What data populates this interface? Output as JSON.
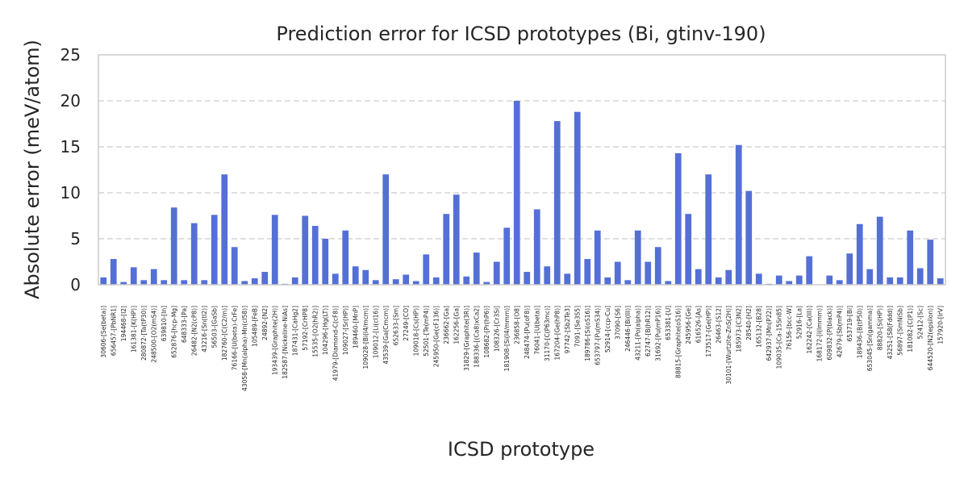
{
  "chart_data": {
    "type": "bar",
    "title": "Prediction error for ICSD prototypes (Bi, gtinv-190)",
    "xlabel": "ICSD prototype",
    "ylabel": "Absolute error (meV/atom)",
    "ylim": [
      0,
      25
    ],
    "yticks": [
      0,
      5,
      10,
      15,
      20,
      25
    ],
    "grid": "y-dashed",
    "bar_color": "#5470d6",
    "categories": [
      "30606-[Se(beta)]",
      "656457-[PbNR1]",
      "194468-[I2]",
      "161381-[K(HP)]",
      "280872-[Ta(tP30)]",
      "248500-[O2(mS4)]",
      "639810-[In]",
      "652876-[hcp-Mg]",
      "648333-[Pa]",
      "26482-[N2(cP8)]",
      "43216-[Sn(tI2)]",
      "56503-[GaSb]",
      "182760-[C(C2/m)]",
      "76166-[U(beta)-CrFe]",
      "43058-[Mn(alpha)-Mn(cI58)]",
      "105489-[FeB]",
      "24892-[N2]",
      "193439-[Graphite(2H)]",
      "182587-[Nickeline-NiAs]",
      "187431-[CaHg2]",
      "57192-[CrHP8]",
      "15535-[O2(hR2)]",
      "104296-[Hg(LT)]",
      "41979-[Diamond-C(cF8)]",
      "109027-[Sr(HP)]",
      "189460-[MnP]",
      "109028-[Bi(I4/mcm)]",
      "109012-[Li(cI16)]",
      "43539-[Ga(Cmcm)]",
      "652633-[Sm]",
      "27249-[CO]",
      "109018-[Cs(HP)]",
      "52501-[Te(mP4)]",
      "245950-[Ge(cF136)]",
      "236662-[Ga]",
      "162256-[Ga]",
      "31829-[Graphite(3R)]",
      "188336-[(Ca8)xCa2]",
      "108682-[Pr(hP6)]",
      "108326-[Cr3Si]",
      "181908-[Si(I4/mmm)]",
      "236858-[O8]",
      "248474-[Pu(oF8)]",
      "76041-[U(beta)]",
      "31170-[C(P63mc)]",
      "167204-[Ge(hP8)]",
      "97742-[Sb2Te3]",
      "7091-[Se3S5]",
      "189786-[Si(oS16)]",
      "653797-[Pu(mS34)]",
      "52914-[ccp-Cu]",
      "37090-[S6]",
      "246446-[Bi(III)]",
      "43211-[Po(alpha)]",
      "62747-[B(hR12)]",
      "31692-[Pu(mP16)]",
      "653381-[U]",
      "88815-[Graphite(oS16)]",
      "245956-[Ge]",
      "616526-[As]",
      "173517-[Ge(HP)]",
      "26463-[S12]",
      "30101-[Wurtzite-ZnS(2H)]",
      "185973-[C3N2]",
      "28540-[H2]",
      "165132-[B28]",
      "642937-[Mn(P22)]",
      "109035-[Ca-15Sn85]",
      "76156-[bcc-W]",
      "52916-[La]",
      "162242-[Ca(III)]",
      "168172-[I(Immm)]",
      "609832-[P(black)]",
      "42679-[Sb(mP4)]",
      "653719-[Bi]",
      "189436-[B(tP50)]",
      "653045-[Sn(gamma)]",
      "88820-[Si(HP)]",
      "43251-[S8(Fddd)]",
      "56897-[SmNiSb]",
      "181082-[C(P1)]",
      "52412-[Sc]",
      "644520-[N2(epsilon)]",
      "157920-[IrV]"
    ],
    "values": [
      0.8,
      2.8,
      0.3,
      1.9,
      0.5,
      1.7,
      0.5,
      8.4,
      0.5,
      6.7,
      0.5,
      7.6,
      12.0,
      4.1,
      0.4,
      0.7,
      1.4,
      7.6,
      0.1,
      0.8,
      7.5,
      6.4,
      5.0,
      1.2,
      5.9,
      2.0,
      1.6,
      0.5,
      12.0,
      0.6,
      1.1,
      0.4,
      3.3,
      0.8,
      7.7,
      9.8,
      0.9,
      3.5,
      0.3,
      2.5,
      6.2,
      20.0,
      1.4,
      8.2,
      2.0,
      17.8,
      1.2,
      18.8,
      2.8,
      5.9,
      0.8,
      2.5,
      0.5,
      5.9,
      2.5,
      4.1,
      0.4,
      14.3,
      7.7,
      1.7,
      12.0,
      0.8,
      1.6,
      15.2,
      10.2,
      1.2,
      0.1,
      1.0,
      0.4,
      1.0,
      3.1,
      0.0,
      1.0,
      0.5,
      3.4,
      6.6,
      1.7,
      7.4,
      0.8,
      0.8,
      5.9,
      1.8,
      4.9,
      0.7
    ]
  }
}
